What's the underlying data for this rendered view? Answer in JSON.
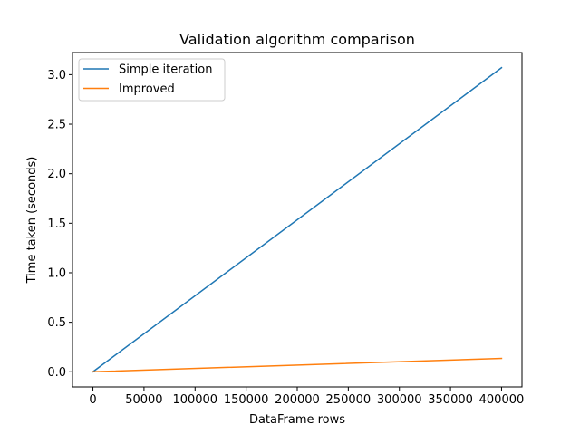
{
  "chart_data": {
    "type": "line",
    "title": "Validation algorithm comparison",
    "xlabel": "DataFrame rows",
    "ylabel": "Time taken (seconds)",
    "xlim": [
      -20000,
      420000
    ],
    "ylim": [
      -0.153,
      3.223
    ],
    "xticks": [
      0,
      50000,
      100000,
      150000,
      200000,
      250000,
      300000,
      350000,
      400000
    ],
    "xtick_labels": [
      "0",
      "50000",
      "100000",
      "150000",
      "200000",
      "250000",
      "300000",
      "350000",
      "400000"
    ],
    "yticks": [
      0.0,
      0.5,
      1.0,
      1.5,
      2.0,
      2.5,
      3.0
    ],
    "ytick_labels": [
      "0.0",
      "0.5",
      "1.0",
      "1.5",
      "2.0",
      "2.5",
      "3.0"
    ],
    "grid": false,
    "legend_position": "upper-left",
    "series": [
      {
        "name": "Simple iteration",
        "color": "#1f77b4",
        "x": [
          0,
          400000
        ],
        "y": [
          0.0,
          3.07
        ]
      },
      {
        "name": "Improved",
        "color": "#ff7f0e",
        "x": [
          0,
          400000
        ],
        "y": [
          0.0,
          0.135
        ]
      }
    ]
  }
}
